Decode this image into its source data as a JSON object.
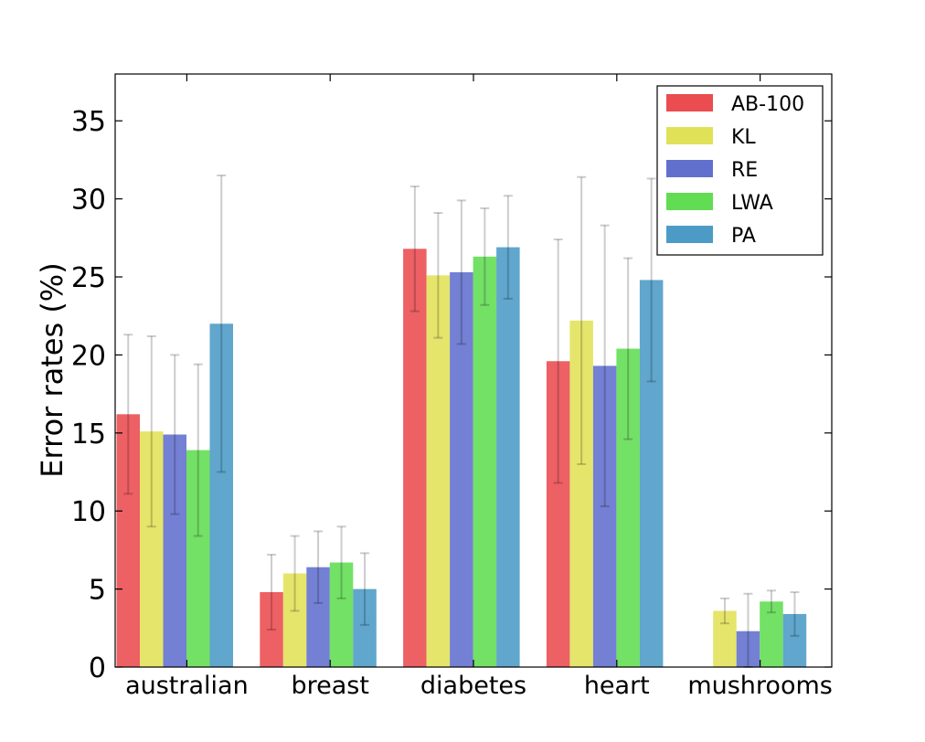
{
  "chart_data": {
    "type": "bar",
    "title": "",
    "xlabel": "",
    "ylabel": "Error rates (%)",
    "ylim": [
      0,
      38
    ],
    "yticks": [
      0,
      5,
      10,
      15,
      20,
      25,
      30,
      35
    ],
    "grid": false,
    "legend_position": "top-right",
    "categories": [
      "australian",
      "breast",
      "diabetes",
      "heart",
      "mushrooms"
    ],
    "series": [
      {
        "name": "AB-100",
        "color": "#e8383d",
        "values": [
          16.2,
          4.8,
          26.8,
          19.6,
          0.0
        ],
        "errors": [
          5.1,
          2.4,
          4.0,
          7.8,
          0.0
        ]
      },
      {
        "name": "KL",
        "color": "#dede46",
        "values": [
          15.1,
          6.0,
          25.1,
          22.2,
          3.6
        ],
        "errors": [
          6.1,
          2.4,
          4.0,
          9.2,
          0.8
        ]
      },
      {
        "name": "RE",
        "color": "#5060c8",
        "values": [
          14.9,
          6.4,
          25.3,
          19.3,
          2.3
        ],
        "errors": [
          5.1,
          2.3,
          4.6,
          9.0,
          2.4
        ]
      },
      {
        "name": "LWA",
        "color": "#50d840",
        "values": [
          13.9,
          6.7,
          26.3,
          20.4,
          4.2
        ],
        "errors": [
          5.5,
          2.3,
          3.1,
          5.8,
          0.7
        ]
      },
      {
        "name": "PA",
        "color": "#3890c0",
        "values": [
          22.0,
          5.0,
          26.9,
          24.8,
          3.4
        ],
        "errors": [
          9.5,
          2.3,
          3.3,
          6.5,
          1.4
        ]
      }
    ]
  }
}
